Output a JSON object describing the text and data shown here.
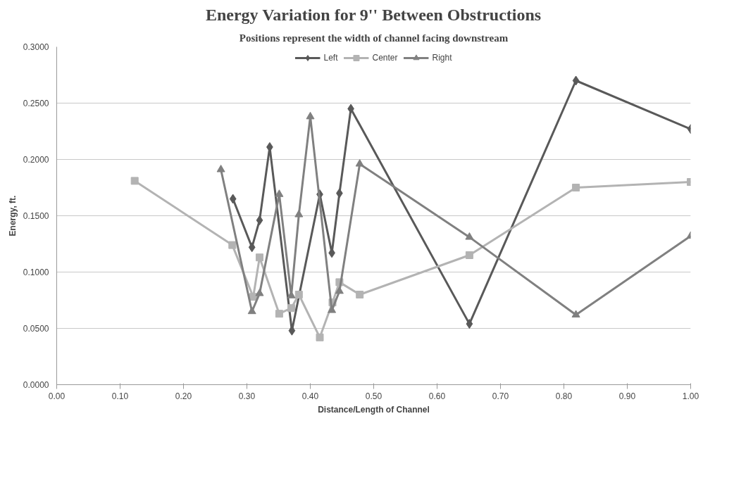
{
  "chart_data": {
    "type": "line",
    "title": "Energy Variation for 9'' Between Obstructions",
    "subtitle": "Positions represent the width of channel facing downstream",
    "xlabel": "Distance/Length of Channel",
    "ylabel": "Energy, ft.",
    "series": [
      {
        "name": "Left",
        "color": "#595959",
        "marker": "diamond",
        "x": [
          0.278,
          0.308,
          0.32,
          0.336,
          0.371,
          0.415,
          0.434,
          0.446,
          0.464,
          0.651,
          0.819,
          1.0
        ],
        "values": [
          0.165,
          0.122,
          0.146,
          0.211,
          0.048,
          0.169,
          0.117,
          0.17,
          0.245,
          0.054,
          0.27,
          0.227
        ]
      },
      {
        "name": "Center",
        "color": "#b3b3b3",
        "marker": "square",
        "x": [
          0.123,
          0.277,
          0.31,
          0.32,
          0.351,
          0.37,
          0.382,
          0.415,
          0.435,
          0.446,
          0.478,
          0.651,
          0.819,
          1.0
        ],
        "values": [
          0.181,
          0.124,
          0.078,
          0.113,
          0.063,
          0.068,
          0.08,
          0.042,
          0.073,
          0.091,
          0.08,
          0.115,
          0.175,
          0.18
        ]
      },
      {
        "name": "Right",
        "color": "#808080",
        "marker": "triangle",
        "x": [
          0.259,
          0.308,
          0.32,
          0.351,
          0.37,
          0.382,
          0.4,
          0.434,
          0.446,
          0.478,
          0.651,
          0.819,
          1.0
        ],
        "values": [
          0.191,
          0.065,
          0.081,
          0.169,
          0.079,
          0.151,
          0.238,
          0.066,
          0.083,
          0.196,
          0.131,
          0.062,
          0.132
        ]
      }
    ],
    "xlim": [
      0,
      1
    ],
    "ylim": [
      0,
      0.3
    ],
    "xticks": [
      {
        "value": 0,
        "label": "0.00"
      },
      {
        "value": 0.1,
        "label": "0.10"
      },
      {
        "value": 0.2,
        "label": "0.20"
      },
      {
        "value": 0.3,
        "label": "0.30"
      },
      {
        "value": 0.4,
        "label": "0.40"
      },
      {
        "value": 0.5,
        "label": "0.50"
      },
      {
        "value": 0.6,
        "label": "0.60"
      },
      {
        "value": 0.7,
        "label": "0.70"
      },
      {
        "value": 0.8,
        "label": "0.80"
      },
      {
        "value": 0.9,
        "label": "0.90"
      },
      {
        "value": 1.0,
        "label": "1.00"
      }
    ],
    "yticks": [
      {
        "value": 0,
        "label": "0.0000"
      },
      {
        "value": 0.05,
        "label": "0.0500"
      },
      {
        "value": 0.1,
        "label": "0.1000"
      },
      {
        "value": 0.15,
        "label": "0.1500"
      },
      {
        "value": 0.2,
        "label": "0.2000"
      },
      {
        "value": 0.25,
        "label": "0.2500"
      },
      {
        "value": 0.3,
        "label": "0.3000"
      }
    ],
    "grid": "y",
    "legend": "top",
    "line_style": "solid"
  }
}
